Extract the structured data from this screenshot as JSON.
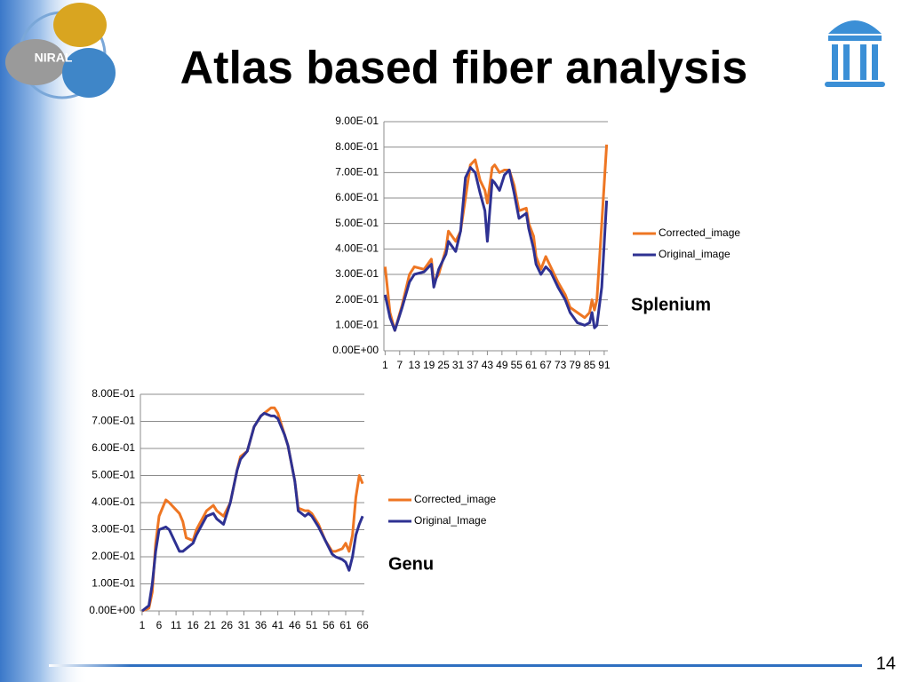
{
  "title": "Atlas based fiber analysis",
  "logo_text": "NIRAL",
  "page_number": "14",
  "chart_data": [
    {
      "type": "line",
      "annotation": "Splenium",
      "grid": true,
      "legend": "right",
      "x": [
        1,
        3,
        5,
        8,
        11,
        13,
        17,
        20,
        21,
        23,
        26,
        27,
        30,
        32,
        34,
        36,
        38,
        40,
        42,
        43,
        45,
        46,
        48,
        50,
        52,
        54,
        56,
        59,
        60,
        62,
        63,
        65,
        67,
        69,
        72,
        75,
        77,
        80,
        83,
        85,
        86,
        87,
        88,
        90,
        92
      ],
      "xlim": [
        0.5,
        92.5
      ],
      "xticks": [
        1,
        7,
        13,
        19,
        25,
        31,
        37,
        43,
        49,
        55,
        61,
        67,
        73,
        79,
        85,
        91
      ],
      "ylim": [
        0,
        0.9
      ],
      "yticks": [
        {
          "value": 0,
          "label": "0.00E+00"
        },
        {
          "value": 0.1,
          "label": "1.00E-01"
        },
        {
          "value": 0.2,
          "label": "2.00E-01"
        },
        {
          "value": 0.3,
          "label": "3.00E-01"
        },
        {
          "value": 0.4,
          "label": "4.00E-01"
        },
        {
          "value": 0.5,
          "label": "5.00E-01"
        },
        {
          "value": 0.6,
          "label": "6.00E-01"
        },
        {
          "value": 0.7,
          "label": "7.00E-01"
        },
        {
          "value": 0.8,
          "label": "8.00E-01"
        },
        {
          "value": 0.9,
          "label": "9.00E-01"
        }
      ],
      "series": [
        {
          "name": "Corrected_image",
          "color": "#ee7623",
          "values": [
            0.33,
            0.15,
            0.08,
            0.18,
            0.3,
            0.33,
            0.32,
            0.36,
            0.27,
            0.3,
            0.4,
            0.47,
            0.43,
            0.47,
            0.6,
            0.73,
            0.75,
            0.67,
            0.63,
            0.58,
            0.72,
            0.73,
            0.7,
            0.71,
            0.71,
            0.65,
            0.55,
            0.56,
            0.5,
            0.45,
            0.37,
            0.32,
            0.37,
            0.33,
            0.27,
            0.22,
            0.17,
            0.15,
            0.13,
            0.15,
            0.2,
            0.16,
            0.2,
            0.5,
            0.81
          ]
        },
        {
          "name": "Original_image",
          "color": "#2e3192",
          "values": [
            0.22,
            0.13,
            0.08,
            0.17,
            0.27,
            0.3,
            0.31,
            0.34,
            0.25,
            0.32,
            0.38,
            0.43,
            0.39,
            0.47,
            0.68,
            0.72,
            0.7,
            0.62,
            0.55,
            0.43,
            0.67,
            0.66,
            0.63,
            0.69,
            0.71,
            0.62,
            0.52,
            0.54,
            0.48,
            0.4,
            0.34,
            0.3,
            0.33,
            0.31,
            0.25,
            0.2,
            0.15,
            0.11,
            0.1,
            0.11,
            0.15,
            0.09,
            0.1,
            0.25,
            0.59
          ]
        }
      ]
    },
    {
      "type": "line",
      "annotation": "Genu",
      "grid": true,
      "legend": "right",
      "x": [
        1,
        3,
        4,
        5,
        6,
        8,
        9,
        12,
        13,
        14,
        16,
        17,
        20,
        22,
        23,
        25,
        27,
        29,
        30,
        32,
        34,
        36,
        37,
        39,
        40,
        41,
        43,
        44,
        46,
        47,
        49,
        50,
        51,
        53,
        55,
        57,
        58,
        60,
        61,
        62,
        63,
        64,
        65,
        66
      ],
      "xlim": [
        0.5,
        66.5
      ],
      "xticks": [
        1,
        6,
        11,
        16,
        21,
        26,
        31,
        36,
        41,
        46,
        51,
        56,
        61,
        66
      ],
      "ylim": [
        0,
        0.8
      ],
      "yticks": [
        {
          "value": 0,
          "label": "0.00E+00"
        },
        {
          "value": 0.1,
          "label": "1.00E-01"
        },
        {
          "value": 0.2,
          "label": "2.00E-01"
        },
        {
          "value": 0.3,
          "label": "3.00E-01"
        },
        {
          "value": 0.4,
          "label": "4.00E-01"
        },
        {
          "value": 0.5,
          "label": "5.00E-01"
        },
        {
          "value": 0.6,
          "label": "6.00E-01"
        },
        {
          "value": 0.7,
          "label": "7.00E-01"
        },
        {
          "value": 0.8,
          "label": "8.00E-01"
        }
      ],
      "series": [
        {
          "name": "Corrected_image",
          "color": "#ee7623",
          "values": [
            0.0,
            0.01,
            0.07,
            0.25,
            0.35,
            0.41,
            0.4,
            0.36,
            0.33,
            0.27,
            0.26,
            0.3,
            0.37,
            0.39,
            0.37,
            0.35,
            0.4,
            0.52,
            0.57,
            0.59,
            0.68,
            0.72,
            0.73,
            0.75,
            0.75,
            0.73,
            0.65,
            0.61,
            0.48,
            0.38,
            0.37,
            0.37,
            0.36,
            0.32,
            0.26,
            0.22,
            0.22,
            0.23,
            0.25,
            0.22,
            0.28,
            0.42,
            0.5,
            0.47
          ]
        },
        {
          "name": "Original_Image",
          "color": "#2e3192",
          "values": [
            0.0,
            0.02,
            0.1,
            0.22,
            0.3,
            0.31,
            0.3,
            0.22,
            0.22,
            0.23,
            0.25,
            0.28,
            0.35,
            0.36,
            0.34,
            0.32,
            0.4,
            0.52,
            0.56,
            0.59,
            0.68,
            0.72,
            0.73,
            0.72,
            0.72,
            0.71,
            0.65,
            0.61,
            0.48,
            0.37,
            0.35,
            0.36,
            0.35,
            0.31,
            0.26,
            0.21,
            0.2,
            0.19,
            0.18,
            0.15,
            0.2,
            0.28,
            0.32,
            0.35
          ]
        }
      ]
    }
  ]
}
